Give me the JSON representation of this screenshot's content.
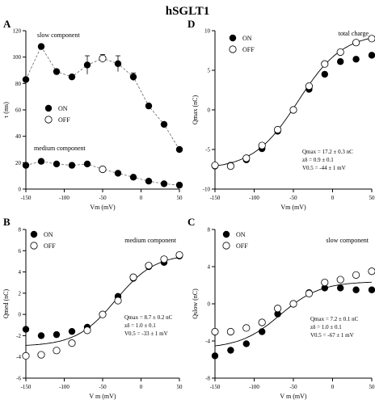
{
  "figure_title": "hSGLT1",
  "chart_data": [
    {
      "panel": "A",
      "type": "scatter",
      "ylabel": "τ (ms)",
      "xlabel": "Vm (mV)",
      "xlim": [
        -150,
        50
      ],
      "ylim": [
        0,
        120
      ],
      "xticks": [
        -150,
        -100,
        -50,
        0,
        50
      ],
      "yticks": [
        0,
        20,
        40,
        60,
        80,
        100,
        120
      ],
      "annotations": [
        "slow component",
        "medium component"
      ],
      "legend": [
        "ON",
        "OFF"
      ],
      "legend_placement": "left-middle",
      "series": [
        {
          "name": "ON",
          "group": "slow",
          "marker": "filled",
          "x": [
            -150,
            -130,
            -110,
            -90,
            -70,
            -50,
            -30,
            -10,
            10,
            30,
            50
          ],
          "y": [
            83,
            108,
            89,
            85,
            94,
            null,
            95,
            85,
            63,
            49,
            30
          ],
          "err": [
            0,
            0,
            0,
            0,
            7,
            0,
            6,
            3,
            0,
            0,
            0
          ]
        },
        {
          "name": "OFF",
          "group": "slow",
          "marker": "open",
          "x": [
            -50
          ],
          "y": [
            99
          ],
          "err": [
            3
          ]
        },
        {
          "name": "ON",
          "group": "medium",
          "marker": "filled",
          "x": [
            -150,
            -130,
            -110,
            -90,
            -70,
            -30,
            -10,
            10,
            30,
            50
          ],
          "y": [
            18,
            21,
            19,
            18,
            19,
            12,
            9,
            6,
            4,
            3
          ]
        },
        {
          "name": "OFF",
          "group": "medium",
          "marker": "open",
          "x": [
            -50
          ],
          "y": [
            15
          ]
        }
      ]
    },
    {
      "panel": "B",
      "type": "scatter",
      "ylabel": "Qmed (nC)",
      "xlabel": "V m (mV)",
      "xlim": [
        -150,
        50
      ],
      "ylim": [
        -6,
        8
      ],
      "xticks": [
        -150,
        -100,
        -50,
        0,
        50
      ],
      "yticks": [
        -6,
        -4,
        -2,
        0,
        2,
        4,
        6,
        8
      ],
      "annotations": [
        "medium component"
      ],
      "fit_text": [
        "Qmax = 8.7 ± 0.2 nC",
        "zδ = 1.0 ± 0.1",
        "V0.5 = -33 ± 1 mV"
      ],
      "legend": [
        "ON",
        "OFF"
      ],
      "legend_placement": "top-left",
      "series": [
        {
          "name": "ON",
          "marker": "filled",
          "x": [
            -150,
            -130,
            -110,
            -90,
            -70,
            -50,
            -30,
            -10,
            10,
            30,
            50
          ],
          "y": [
            -1.4,
            -2.0,
            -1.9,
            -1.6,
            -1.2,
            0.0,
            1.7,
            3.4,
            4.5,
            4.9,
            5.5
          ]
        },
        {
          "name": "OFF",
          "marker": "open",
          "x": [
            -150,
            -130,
            -110,
            -90,
            -70,
            -50,
            -30,
            -10,
            10,
            30,
            50
          ],
          "y": [
            -3.9,
            -3.8,
            -3.4,
            -2.7,
            -1.5,
            0.0,
            1.3,
            3.5,
            4.6,
            5.2,
            5.6
          ]
        },
        {
          "name": "fit",
          "marker": "line",
          "model": "boltzmann",
          "Qmax": 8.7,
          "zdelta": 1.0,
          "V05": -33,
          "offset": -3.0
        }
      ]
    },
    {
      "panel": "C",
      "type": "scatter",
      "ylabel": "Qslow (nC)",
      "xlabel": "V m (mV)",
      "xlim": [
        -150,
        50
      ],
      "ylim": [
        -8,
        8
      ],
      "xticks": [
        -150,
        -100,
        -50,
        0,
        50
      ],
      "yticks": [
        -8,
        -4,
        0,
        4,
        8
      ],
      "annotations": [
        "slow component"
      ],
      "fit_text": [
        "Qmax = 7.2 ± 0.1 nC",
        "zδ = 1.0 ± 0.1",
        "V0.5 = -67 ± 1 mV"
      ],
      "legend": [
        "ON",
        "OFF"
      ],
      "legend_placement": "top-left",
      "series": [
        {
          "name": "ON",
          "marker": "filled",
          "x": [
            -150,
            -130,
            -110,
            -90,
            -70,
            -50,
            -30,
            -10,
            10,
            30,
            50
          ],
          "y": [
            -5.6,
            -5.0,
            -4.3,
            -3.0,
            -1.1,
            0.0,
            1.2,
            1.7,
            1.7,
            1.5,
            1.5
          ]
        },
        {
          "name": "OFF",
          "marker": "open",
          "x": [
            -150,
            -130,
            -110,
            -90,
            -70,
            -50,
            -30,
            -10,
            10,
            30,
            50
          ],
          "y": [
            -3.0,
            -3.0,
            -2.6,
            -2.0,
            -0.5,
            0.0,
            1.1,
            2.3,
            2.6,
            3.1,
            3.5
          ]
        },
        {
          "name": "fit",
          "marker": "line",
          "model": "boltzmann",
          "Qmax": 7.2,
          "zdelta": 1.0,
          "V05": -67,
          "offset": -4.8
        }
      ]
    },
    {
      "panel": "D",
      "type": "scatter",
      "ylabel": "Qmax (nC)",
      "xlabel": "Vm (mV)",
      "xlim": [
        -150,
        50
      ],
      "ylim": [
        -10,
        10
      ],
      "xticks": [
        -150,
        -100,
        -50,
        0,
        50
      ],
      "yticks": [
        -10,
        -5,
        0,
        5,
        10
      ],
      "annotations": [
        "total charge"
      ],
      "fit_text": [
        "Qmax = 17.2 ± 0.3 nC",
        "zδ = 0.9 ± 0.1",
        "V0.5 = -44 ± 1 mV"
      ],
      "legend": [
        "ON",
        "OFF"
      ],
      "legend_placement": "top-left",
      "series": [
        {
          "name": "ON",
          "marker": "filled",
          "x": [
            -150,
            -130,
            -110,
            -90,
            -70,
            -50,
            -30,
            -10,
            10,
            30,
            50
          ],
          "y": [
            -7.1,
            -7.0,
            -6.3,
            -4.9,
            -2.7,
            0.0,
            2.6,
            4.5,
            6.1,
            6.4,
            6.9
          ]
        },
        {
          "name": "OFF",
          "marker": "open",
          "x": [
            -150,
            -130,
            -110,
            -90,
            -70,
            -50,
            -30,
            -10,
            10,
            30,
            50
          ],
          "y": [
            -7.0,
            -7.1,
            -6.1,
            -4.5,
            -2.5,
            0.0,
            3.0,
            5.8,
            7.3,
            8.5,
            9.0
          ]
        },
        {
          "name": "fit",
          "marker": "line",
          "model": "boltzmann",
          "Qmax": 17.2,
          "zdelta": 0.9,
          "V05": -44,
          "offset": -7.5
        }
      ]
    }
  ]
}
